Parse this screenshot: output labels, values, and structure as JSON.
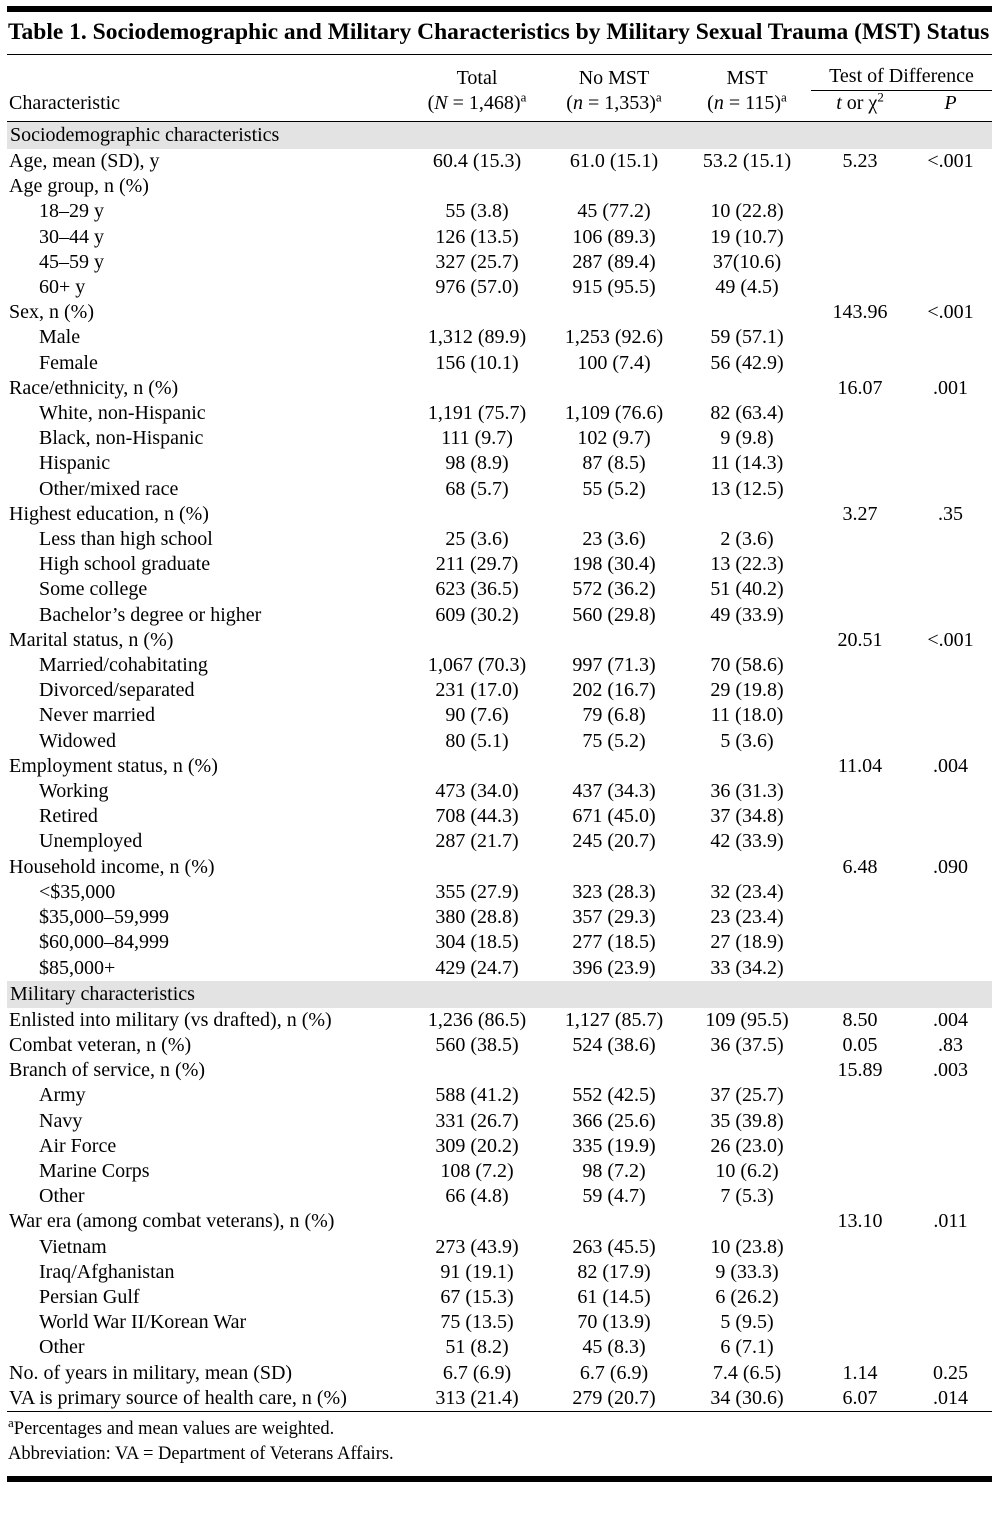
{
  "document": {
    "title": "Table 1. Sociodemographic and Military Characteristics by Military Sexual Trauma (MST) Status"
  },
  "header": {
    "characteristic": "Characteristic",
    "test_of_difference": "Test of Difference",
    "columns": [
      {
        "name": "Total",
        "paren": "(",
        "var": "N",
        "count": " = 1,468)",
        "sup": "a"
      },
      {
        "name": "No MST",
        "paren": "(",
        "var": "n",
        "count": " = 1,353)",
        "sup": "a"
      },
      {
        "name": "MST",
        "paren": "(",
        "var": "n",
        "count": " = 115)",
        "sup": "a"
      }
    ],
    "stat": {
      "t": "t",
      "or": " or ",
      "chi": "χ",
      "sup": "2"
    },
    "p": "P"
  },
  "rows": [
    {
      "type": "section",
      "label": "Sociodemographic characteristics"
    },
    {
      "type": "main",
      "label": "Age, mean (SD), y",
      "total": "60.4 (15.3)",
      "no_mst": "61.0 (15.1)",
      "mst": "53.2 (15.1)",
      "stat": "5.23",
      "p": "<.001"
    },
    {
      "type": "main",
      "label": "Age group, n (%)",
      "total": "",
      "no_mst": "",
      "mst": "",
      "stat": "",
      "p": ""
    },
    {
      "type": "sub",
      "label": "18–29 y",
      "total": "55 (3.8)",
      "no_mst": "45 (77.2)",
      "mst": "10 (22.8)",
      "stat": "",
      "p": ""
    },
    {
      "type": "sub",
      "label": "30–44 y",
      "total": "126 (13.5)",
      "no_mst": "106 (89.3)",
      "mst": "19 (10.7)",
      "stat": "",
      "p": ""
    },
    {
      "type": "sub",
      "label": "45–59 y",
      "total": "327 (25.7)",
      "no_mst": "287 (89.4)",
      "mst": "37(10.6)",
      "stat": "",
      "p": ""
    },
    {
      "type": "sub",
      "label": "60+ y",
      "total": "976 (57.0)",
      "no_mst": "915 (95.5)",
      "mst": "49 (4.5)",
      "stat": "",
      "p": ""
    },
    {
      "type": "main",
      "label": "Sex, n (%)",
      "total": "",
      "no_mst": "",
      "mst": "",
      "stat": "143.96",
      "p": "<.001"
    },
    {
      "type": "sub",
      "label": "Male",
      "total": "1,312 (89.9)",
      "no_mst": "1,253 (92.6)",
      "mst": "59 (57.1)",
      "stat": "",
      "p": ""
    },
    {
      "type": "sub",
      "label": "Female",
      "total": "156 (10.1)",
      "no_mst": "100 (7.4)",
      "mst": "56 (42.9)",
      "stat": "",
      "p": ""
    },
    {
      "type": "main",
      "label": "Race/ethnicity, n (%)",
      "total": "",
      "no_mst": "",
      "mst": "",
      "stat": "16.07",
      "p": ".001"
    },
    {
      "type": "sub",
      "label": "White, non-Hispanic",
      "total": "1,191 (75.7)",
      "no_mst": "1,109 (76.6)",
      "mst": "82 (63.4)",
      "stat": "",
      "p": ""
    },
    {
      "type": "sub",
      "label": "Black, non-Hispanic",
      "total": "111 (9.7)",
      "no_mst": "102 (9.7)",
      "mst": "9 (9.8)",
      "stat": "",
      "p": ""
    },
    {
      "type": "sub",
      "label": "Hispanic",
      "total": "98 (8.9)",
      "no_mst": "87 (8.5)",
      "mst": "11 (14.3)",
      "stat": "",
      "p": ""
    },
    {
      "type": "sub",
      "label": "Other/mixed race",
      "total": "68 (5.7)",
      "no_mst": "55 (5.2)",
      "mst": "13 (12.5)",
      "stat": "",
      "p": ""
    },
    {
      "type": "main",
      "label": "Highest education, n (%)",
      "total": "",
      "no_mst": "",
      "mst": "",
      "stat": "3.27",
      "p": ".35"
    },
    {
      "type": "sub",
      "label": "Less than high school",
      "total": "25 (3.6)",
      "no_mst": "23 (3.6)",
      "mst": "2 (3.6)",
      "stat": "",
      "p": ""
    },
    {
      "type": "sub",
      "label": "High school graduate",
      "total": "211 (29.7)",
      "no_mst": "198 (30.4)",
      "mst": "13 (22.3)",
      "stat": "",
      "p": ""
    },
    {
      "type": "sub",
      "label": "Some college",
      "total": "623 (36.5)",
      "no_mst": "572 (36.2)",
      "mst": "51 (40.2)",
      "stat": "",
      "p": ""
    },
    {
      "type": "sub",
      "label": "Bachelor’s degree or higher",
      "total": "609 (30.2)",
      "no_mst": "560 (29.8)",
      "mst": "49 (33.9)",
      "stat": "",
      "p": ""
    },
    {
      "type": "main",
      "label": "Marital status, n (%)",
      "total": "",
      "no_mst": "",
      "mst": "",
      "stat": "20.51",
      "p": "<.001"
    },
    {
      "type": "sub",
      "label": "Married/cohabitating",
      "total": "1,067 (70.3)",
      "no_mst": "997 (71.3)",
      "mst": "70 (58.6)",
      "stat": "",
      "p": ""
    },
    {
      "type": "sub",
      "label": "Divorced/separated",
      "total": "231 (17.0)",
      "no_mst": "202 (16.7)",
      "mst": "29 (19.8)",
      "stat": "",
      "p": ""
    },
    {
      "type": "sub",
      "label": "Never married",
      "total": "90 (7.6)",
      "no_mst": "79 (6.8)",
      "mst": "11 (18.0)",
      "stat": "",
      "p": ""
    },
    {
      "type": "sub",
      "label": "Widowed",
      "total": "80 (5.1)",
      "no_mst": "75 (5.2)",
      "mst": "5 (3.6)",
      "stat": "",
      "p": ""
    },
    {
      "type": "main",
      "label": "Employment status, n (%)",
      "total": "",
      "no_mst": "",
      "mst": "",
      "stat": "11.04",
      "p": ".004"
    },
    {
      "type": "sub",
      "label": "Working",
      "total": "473 (34.0)",
      "no_mst": "437 (34.3)",
      "mst": "36 (31.3)",
      "stat": "",
      "p": ""
    },
    {
      "type": "sub",
      "label": "Retired",
      "total": "708 (44.3)",
      "no_mst": "671 (45.0)",
      "mst": "37 (34.8)",
      "stat": "",
      "p": ""
    },
    {
      "type": "sub",
      "label": "Unemployed",
      "total": "287 (21.7)",
      "no_mst": "245 (20.7)",
      "mst": "42 (33.9)",
      "stat": "",
      "p": ""
    },
    {
      "type": "main",
      "label": "Household income, n (%)",
      "total": "",
      "no_mst": "",
      "mst": "",
      "stat": "6.48",
      "p": ".090"
    },
    {
      "type": "sub",
      "label": "<$35,000",
      "total": "355 (27.9)",
      "no_mst": "323 (28.3)",
      "mst": "32 (23.4)",
      "stat": "",
      "p": ""
    },
    {
      "type": "sub",
      "label": "$35,000–59,999",
      "total": "380 (28.8)",
      "no_mst": "357 (29.3)",
      "mst": "23 (23.4)",
      "stat": "",
      "p": ""
    },
    {
      "type": "sub",
      "label": "$60,000–84,999",
      "total": "304 (18.5)",
      "no_mst": "277 (18.5)",
      "mst": "27 (18.9)",
      "stat": "",
      "p": ""
    },
    {
      "type": "sub",
      "label": "$85,000+",
      "total": "429 (24.7)",
      "no_mst": "396 (23.9)",
      "mst": "33 (34.2)",
      "stat": "",
      "p": ""
    },
    {
      "type": "section",
      "label": "Military characteristics"
    },
    {
      "type": "main",
      "label": "Enlisted into military (vs drafted), n (%)",
      "total": "1,236 (86.5)",
      "no_mst": "1,127 (85.7)",
      "mst": "109 (95.5)",
      "stat": "8.50",
      "p": ".004"
    },
    {
      "type": "main",
      "label": "Combat veteran, n (%)",
      "total": "560 (38.5)",
      "no_mst": "524 (38.6)",
      "mst": "36 (37.5)",
      "stat": "0.05",
      "p": ".83"
    },
    {
      "type": "main",
      "label": "Branch of service, n (%)",
      "total": "",
      "no_mst": "",
      "mst": "",
      "stat": "15.89",
      "p": ".003"
    },
    {
      "type": "sub",
      "label": "Army",
      "total": "588 (41.2)",
      "no_mst": "552 (42.5)",
      "mst": "37 (25.7)",
      "stat": "",
      "p": ""
    },
    {
      "type": "sub",
      "label": "Navy",
      "total": "331 (26.7)",
      "no_mst": "366 (25.6)",
      "mst": "35 (39.8)",
      "stat": "",
      "p": ""
    },
    {
      "type": "sub",
      "label": "Air Force",
      "total": "309 (20.2)",
      "no_mst": "335 (19.9)",
      "mst": "26 (23.0)",
      "stat": "",
      "p": ""
    },
    {
      "type": "sub",
      "label": "Marine Corps",
      "total": "108 (7.2)",
      "no_mst": "98 (7.2)",
      "mst": "10 (6.2)",
      "stat": "",
      "p": ""
    },
    {
      "type": "sub",
      "label": "Other",
      "total": "66 (4.8)",
      "no_mst": "59 (4.7)",
      "mst": "7 (5.3)",
      "stat": "",
      "p": ""
    },
    {
      "type": "main",
      "label": "War era (among combat veterans), n (%)",
      "total": "",
      "no_mst": "",
      "mst": "",
      "stat": "13.10",
      "p": ".011"
    },
    {
      "type": "sub",
      "label": "Vietnam",
      "total": "273 (43.9)",
      "no_mst": "263 (45.5)",
      "mst": "10 (23.8)",
      "stat": "",
      "p": ""
    },
    {
      "type": "sub",
      "label": "Iraq/Afghanistan",
      "total": "91 (19.1)",
      "no_mst": "82 (17.9)",
      "mst": "9 (33.3)",
      "stat": "",
      "p": ""
    },
    {
      "type": "sub",
      "label": "Persian Gulf",
      "total": "67 (15.3)",
      "no_mst": "61 (14.5)",
      "mst": "6 (26.2)",
      "stat": "",
      "p": ""
    },
    {
      "type": "sub",
      "label": "World War II/Korean War",
      "total": "75 (13.5)",
      "no_mst": "70 (13.9)",
      "mst": "5 (9.5)",
      "stat": "",
      "p": ""
    },
    {
      "type": "sub",
      "label": "Other",
      "total": "51 (8.2)",
      "no_mst": "45 (8.3)",
      "mst": "6 (7.1)",
      "stat": "",
      "p": ""
    },
    {
      "type": "main",
      "label": "No. of years in military, mean (SD)",
      "total": "6.7 (6.9)",
      "no_mst": "6.7 (6.9)",
      "mst": "7.4 (6.5)",
      "stat": "1.14",
      "p": "0.25"
    },
    {
      "type": "main",
      "label": "VA is primary source of health care, n (%)",
      "total": "313 (21.4)",
      "no_mst": "279 (20.7)",
      "mst": "34 (30.6)",
      "stat": "6.07",
      "p": ".014"
    }
  ],
  "footnotes": {
    "weighted": {
      "sup": "a",
      "text": "Percentages and mean values are weighted."
    },
    "abbreviation": "Abbreviation: VA = Department of Veterans Affairs."
  }
}
